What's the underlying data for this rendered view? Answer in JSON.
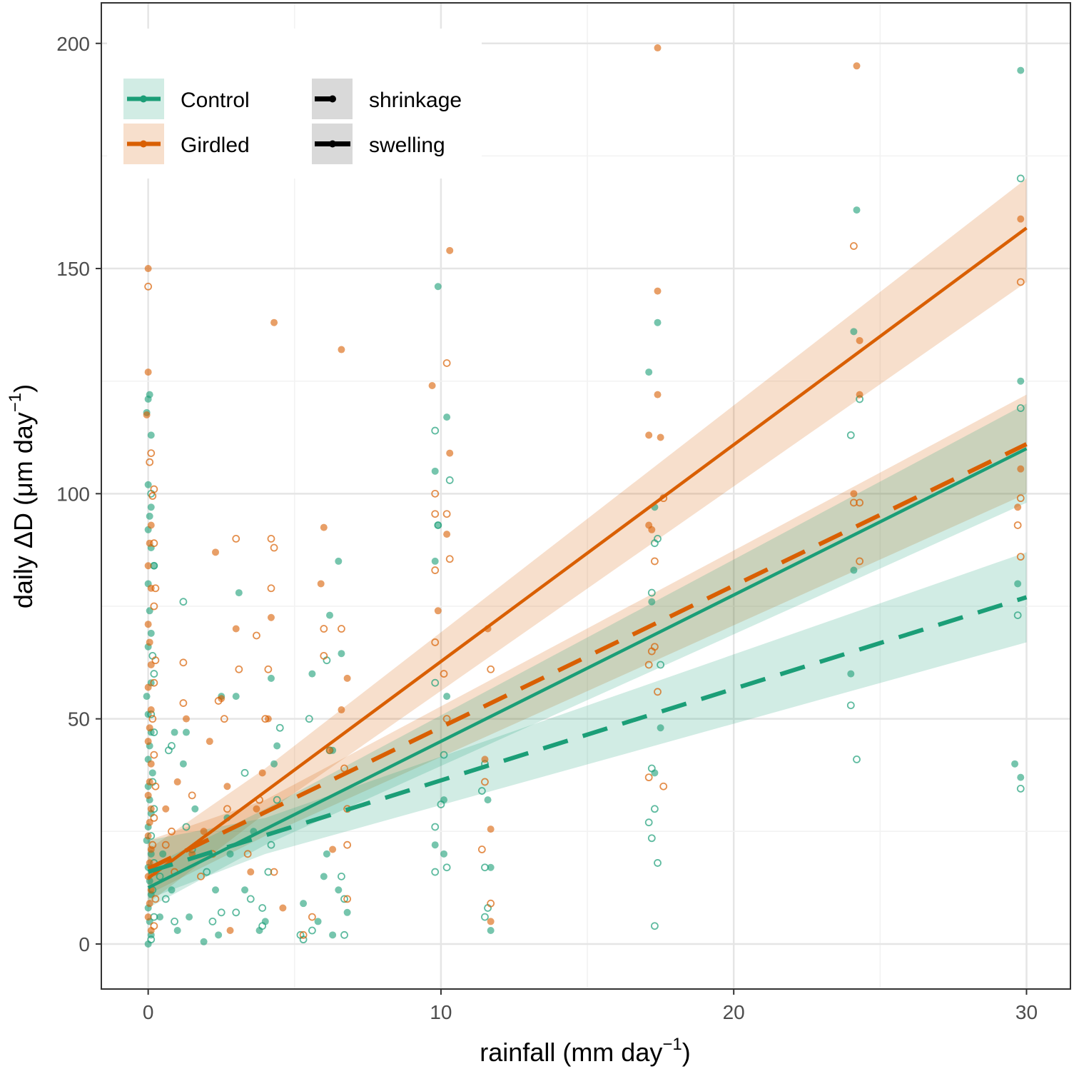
{
  "chart_data": {
    "type": "scatter",
    "xlabel": "rainfall (mm day",
    "xlabel_sup": "−1",
    "xlabel_end": ")",
    "ylabel": "daily ΔD (μm day",
    "ylabel_sup": "−1",
    "ylabel_end": ")",
    "xlim": [
      -1.6,
      31.5
    ],
    "ylim": [
      -10,
      209
    ],
    "xticks": [
      "0",
      "10",
      "20",
      "30"
    ],
    "yticks": [
      "0",
      "50",
      "100",
      "150",
      "200"
    ],
    "grid": true,
    "legend_placement": "top-left",
    "legend": {
      "group": [
        {
          "name": "Control",
          "color": "#1b9e77"
        },
        {
          "name": "Girdled",
          "color": "#d95f02"
        }
      ],
      "type": [
        {
          "name": "shrinkage",
          "linetype": "dashed"
        },
        {
          "name": "swelling",
          "linetype": "solid"
        }
      ]
    },
    "colors": {
      "Control": "#1b9e77",
      "Girdled": "#d95f02"
    },
    "fits": [
      {
        "group": "Girdled",
        "type": "swelling",
        "x": [
          0,
          30
        ],
        "y": [
          14.6,
          159
        ],
        "ribbon": [
          [
            0,
            9,
            21
          ],
          [
            4,
            29,
            39
          ],
          [
            30,
            147,
            170
          ]
        ]
      },
      {
        "group": "Girdled",
        "type": "shrinkage",
        "x": [
          0,
          30
        ],
        "y": [
          16.7,
          111
        ],
        "ribbon": [
          [
            0,
            11,
            23
          ],
          [
            4,
            24,
            32
          ],
          [
            30,
            100,
            122
          ]
        ]
      },
      {
        "group": "Control",
        "type": "swelling",
        "x": [
          0,
          30
        ],
        "y": [
          12.5,
          110
        ],
        "ribbon": [
          [
            0,
            8,
            17
          ],
          [
            4,
            22,
            30
          ],
          [
            30,
            98,
            120
          ]
        ]
      },
      {
        "group": "Control",
        "type": "shrinkage",
        "x": [
          0,
          30
        ],
        "y": [
          16,
          77
        ],
        "ribbon": [
          [
            0,
            10,
            23
          ],
          [
            4,
            20,
            28
          ],
          [
            30,
            67,
            87
          ]
        ]
      }
    ],
    "points": {
      "Control_filled": [
        [
          29.8,
          194
        ],
        [
          29.8,
          125
        ],
        [
          29.7,
          80
        ],
        [
          29.6,
          40
        ],
        [
          29.8,
          37
        ],
        [
          24.2,
          163
        ],
        [
          24.1,
          136
        ],
        [
          24.1,
          83
        ],
        [
          24.0,
          60
        ],
        [
          17.4,
          138
        ],
        [
          17.1,
          127
        ],
        [
          17.3,
          97
        ],
        [
          17.2,
          76
        ],
        [
          17.5,
          48
        ],
        [
          17.3,
          38
        ],
        [
          9.9,
          146
        ],
        [
          10.2,
          117
        ],
        [
          9.8,
          105
        ],
        [
          9.9,
          93
        ],
        [
          9.8,
          85
        ],
        [
          10.2,
          55
        ],
        [
          10.1,
          32
        ],
        [
          9.8,
          22
        ],
        [
          10.1,
          20
        ],
        [
          11.6,
          32
        ],
        [
          11.7,
          17
        ],
        [
          11.7,
          3
        ],
        [
          6.5,
          85
        ],
        [
          6.2,
          73
        ],
        [
          6.6,
          64.5
        ],
        [
          5.6,
          60
        ],
        [
          6.3,
          43
        ],
        [
          6.5,
          12
        ],
        [
          6.8,
          7
        ],
        [
          6.3,
          2
        ],
        [
          4.2,
          59
        ],
        [
          4.4,
          44
        ],
        [
          4.3,
          40
        ],
        [
          4.0,
          5
        ],
        [
          3.6,
          25
        ],
        [
          3.1,
          78
        ],
        [
          3.0,
          55
        ],
        [
          2.7,
          28
        ],
        [
          2.5,
          55
        ],
        [
          2.3,
          12
        ],
        [
          2.4,
          2
        ],
        [
          1.9,
          0.5
        ],
        [
          1.3,
          47
        ],
        [
          1.2,
          40
        ],
        [
          0.9,
          47
        ],
        [
          1.6,
          30
        ],
        [
          1.4,
          6
        ],
        [
          1.0,
          3
        ],
        [
          0.05,
          122
        ],
        [
          0.0,
          121
        ],
        [
          -0.05,
          118
        ],
        [
          0.1,
          113
        ],
        [
          0.0,
          102
        ],
        [
          0.1,
          97
        ],
        [
          0.05,
          95
        ],
        [
          0.0,
          92
        ],
        [
          0.1,
          88
        ],
        [
          0.2,
          84
        ],
        [
          0.0,
          80
        ],
        [
          0.05,
          74
        ],
        [
          0.1,
          69
        ],
        [
          0.0,
          66
        ],
        [
          0.1,
          58
        ],
        [
          -0.05,
          55
        ],
        [
          0.0,
          51
        ],
        [
          0.1,
          47
        ],
        [
          0.05,
          44
        ],
        [
          0.0,
          41
        ],
        [
          0.15,
          38
        ],
        [
          0.0,
          35
        ],
        [
          0.05,
          32
        ],
        [
          0.1,
          29
        ],
        [
          0.0,
          26
        ],
        [
          -0.05,
          23
        ],
        [
          0.1,
          20
        ],
        [
          0.0,
          17
        ],
        [
          0.05,
          14
        ],
        [
          0.1,
          11
        ],
        [
          0.0,
          8
        ],
        [
          0.05,
          5
        ],
        [
          0.1,
          2
        ],
        [
          0.0,
          0
        ],
        [
          0.5,
          20
        ],
        [
          0.8,
          12
        ],
        [
          0.4,
          6
        ],
        [
          2.8,
          20
        ],
        [
          3.3,
          12
        ],
        [
          3.8,
          3
        ],
        [
          5.3,
          9
        ],
        [
          5.8,
          5
        ],
        [
          6.1,
          20
        ],
        [
          6.0,
          15
        ]
      ],
      "Control_open": [
        [
          29.8,
          170
        ],
        [
          29.8,
          119
        ],
        [
          29.7,
          73
        ],
        [
          29.8,
          34.5
        ],
        [
          24.3,
          121
        ],
        [
          24.0,
          113
        ],
        [
          24.0,
          53
        ],
        [
          24.2,
          41
        ],
        [
          17.4,
          90
        ],
        [
          17.3,
          89
        ],
        [
          17.2,
          78
        ],
        [
          17.5,
          62
        ],
        [
          17.2,
          39
        ],
        [
          17.3,
          30
        ],
        [
          17.1,
          27
        ],
        [
          17.2,
          23.5
        ],
        [
          17.4,
          18
        ],
        [
          17.3,
          4
        ],
        [
          9.8,
          114
        ],
        [
          10.3,
          103
        ],
        [
          9.9,
          93
        ],
        [
          9.8,
          58
        ],
        [
          10.1,
          42
        ],
        [
          10.0,
          31
        ],
        [
          9.8,
          26
        ],
        [
          10.2,
          17
        ],
        [
          9.8,
          16
        ],
        [
          11.5,
          40
        ],
        [
          11.4,
          34
        ],
        [
          11.5,
          17
        ],
        [
          11.6,
          8
        ],
        [
          11.5,
          6
        ],
        [
          6.1,
          63
        ],
        [
          5.5,
          50
        ],
        [
          6.2,
          43
        ],
        [
          6.6,
          15
        ],
        [
          6.7,
          10
        ],
        [
          6.7,
          2
        ],
        [
          5.2,
          2
        ],
        [
          5.3,
          1
        ],
        [
          5.6,
          3
        ],
        [
          4.5,
          48
        ],
        [
          4.4,
          32
        ],
        [
          4.1,
          16
        ],
        [
          3.9,
          8
        ],
        [
          3.9,
          4
        ],
        [
          3.3,
          38
        ],
        [
          3.0,
          7
        ],
        [
          2.5,
          7
        ],
        [
          2.2,
          5
        ],
        [
          1.2,
          76
        ],
        [
          0.8,
          44
        ],
        [
          0.7,
          43
        ],
        [
          1.3,
          26
        ],
        [
          0.9,
          5
        ],
        [
          0.1,
          100
        ],
        [
          0.2,
          84
        ],
        [
          0.15,
          64
        ],
        [
          0.2,
          60
        ],
        [
          0.1,
          51
        ],
        [
          0.2,
          47
        ],
        [
          0.15,
          36
        ],
        [
          0.2,
          30
        ],
        [
          0.1,
          24
        ],
        [
          0.2,
          18
        ],
        [
          0.15,
          12
        ],
        [
          0.2,
          6
        ],
        [
          0.1,
          1
        ],
        [
          1.5,
          21
        ],
        [
          2.0,
          16
        ],
        [
          3.5,
          10
        ],
        [
          4.2,
          22
        ],
        [
          0.6,
          10
        ],
        [
          0.4,
          15
        ]
      ],
      "Girdled_filled": [
        [
          29.8,
          161
        ],
        [
          29.8,
          105.5
        ],
        [
          29.7,
          97
        ],
        [
          24.2,
          195
        ],
        [
          24.3,
          134
        ],
        [
          24.3,
          122
        ],
        [
          24.1,
          100
        ],
        [
          17.4,
          199
        ],
        [
          17.4,
          145
        ],
        [
          17.4,
          122
        ],
        [
          17.1,
          113
        ],
        [
          17.5,
          112.5
        ],
        [
          17.1,
          93
        ],
        [
          17.2,
          92
        ],
        [
          10.3,
          154
        ],
        [
          9.7,
          124
        ],
        [
          10.3,
          109
        ],
        [
          10.2,
          91
        ],
        [
          9.9,
          74
        ],
        [
          11.6,
          70
        ],
        [
          11.5,
          41
        ],
        [
          11.7,
          25.5
        ],
        [
          11.7,
          5
        ],
        [
          6.6,
          132
        ],
        [
          6.0,
          92.5
        ],
        [
          5.9,
          80
        ],
        [
          6.8,
          59
        ],
        [
          6.6,
          52
        ],
        [
          6.2,
          43
        ],
        [
          6.3,
          21
        ],
        [
          4.3,
          138
        ],
        [
          4.2,
          72.5
        ],
        [
          4.1,
          50
        ],
        [
          3.9,
          38
        ],
        [
          3.7,
          30
        ],
        [
          3.0,
          70
        ],
        [
          2.5,
          54.5
        ],
        [
          2.1,
          45
        ],
        [
          2.3,
          87
        ],
        [
          2.7,
          35
        ],
        [
          1.9,
          25
        ],
        [
          1.3,
          50
        ],
        [
          1.0,
          36
        ],
        [
          0.6,
          30
        ],
        [
          1.5,
          20
        ],
        [
          0.0,
          150
        ],
        [
          0.0,
          127
        ],
        [
          -0.05,
          117.5
        ],
        [
          0.1,
          93
        ],
        [
          0.05,
          89
        ],
        [
          0.0,
          84
        ],
        [
          0.1,
          79
        ],
        [
          0.0,
          71
        ],
        [
          0.05,
          67
        ],
        [
          0.1,
          62
        ],
        [
          0.0,
          57
        ],
        [
          0.1,
          52
        ],
        [
          0.05,
          48
        ],
        [
          0.0,
          45
        ],
        [
          0.1,
          40
        ],
        [
          0.05,
          36
        ],
        [
          0.0,
          33
        ],
        [
          0.1,
          30
        ],
        [
          0.05,
          27
        ],
        [
          0.0,
          24
        ],
        [
          0.1,
          21
        ],
        [
          0.05,
          18
        ],
        [
          0.0,
          15
        ],
        [
          0.1,
          12
        ],
        [
          0.05,
          9
        ],
        [
          0.0,
          6
        ],
        [
          0.1,
          3
        ],
        [
          3.5,
          16
        ],
        [
          4.6,
          8
        ],
        [
          2.8,
          3
        ]
      ],
      "Girdled_open": [
        [
          29.8,
          147
        ],
        [
          29.8,
          99
        ],
        [
          29.7,
          93
        ],
        [
          29.8,
          86
        ],
        [
          24.1,
          155
        ],
        [
          24.3,
          98
        ],
        [
          24.1,
          98
        ],
        [
          24.3,
          85
        ],
        [
          17.6,
          99
        ],
        [
          17.3,
          85
        ],
        [
          17.3,
          66
        ],
        [
          17.2,
          65
        ],
        [
          17.1,
          62
        ],
        [
          17.4,
          56
        ],
        [
          17.1,
          37
        ],
        [
          17.6,
          35
        ],
        [
          10.2,
          129
        ],
        [
          9.8,
          100
        ],
        [
          9.8,
          95.5
        ],
        [
          10.2,
          95.5
        ],
        [
          10.3,
          85.5
        ],
        [
          9.8,
          83
        ],
        [
          9.8,
          67
        ],
        [
          10.1,
          60
        ],
        [
          10.2,
          50
        ],
        [
          11.7,
          61
        ],
        [
          11.5,
          36
        ],
        [
          11.4,
          21
        ],
        [
          11.7,
          9
        ],
        [
          6.6,
          70
        ],
        [
          6.0,
          70
        ],
        [
          6.0,
          64
        ],
        [
          6.7,
          39
        ],
        [
          6.8,
          30
        ],
        [
          6.8,
          22
        ],
        [
          6.8,
          10
        ],
        [
          4.2,
          90
        ],
        [
          4.3,
          88
        ],
        [
          4.2,
          79
        ],
        [
          3.7,
          68.5
        ],
        [
          4.1,
          61
        ],
        [
          4.0,
          50
        ],
        [
          3.8,
          32
        ],
        [
          4.3,
          16
        ],
        [
          3.0,
          90
        ],
        [
          3.1,
          61
        ],
        [
          2.6,
          50
        ],
        [
          2.4,
          54
        ],
        [
          2.7,
          30
        ],
        [
          2.2,
          20
        ],
        [
          1.2,
          62.5
        ],
        [
          1.2,
          53.5
        ],
        [
          1.5,
          33
        ],
        [
          0.8,
          25
        ],
        [
          1.8,
          15
        ],
        [
          0.0,
          146
        ],
        [
          0.1,
          109
        ],
        [
          0.05,
          107
        ],
        [
          0.2,
          101
        ],
        [
          0.15,
          99.5
        ],
        [
          0.2,
          89
        ],
        [
          0.25,
          79
        ],
        [
          0.2,
          75
        ],
        [
          0.25,
          63
        ],
        [
          0.2,
          58
        ],
        [
          0.15,
          50
        ],
        [
          0.2,
          42
        ],
        [
          0.25,
          35
        ],
        [
          0.2,
          28
        ],
        [
          0.15,
          22
        ],
        [
          0.2,
          16
        ],
        [
          0.25,
          10
        ],
        [
          0.2,
          4
        ],
        [
          0.6,
          22
        ],
        [
          0.9,
          16
        ],
        [
          5.3,
          2
        ],
        [
          5.6,
          6
        ],
        [
          3.4,
          20
        ]
      ]
    }
  }
}
